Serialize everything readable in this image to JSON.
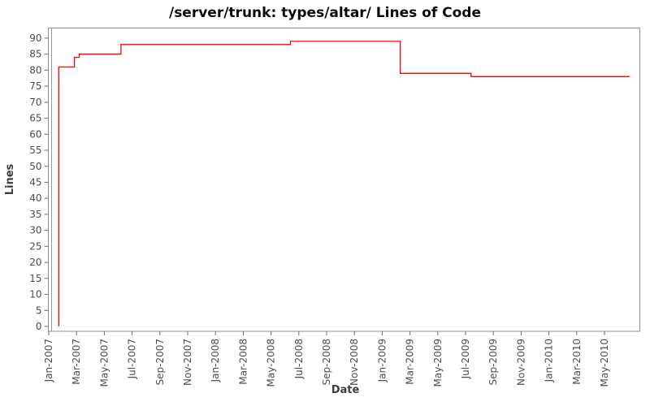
{
  "chart_data": {
    "type": "line",
    "subtype": "step",
    "title": "/server/trunk: types/altar/ Lines of Code",
    "xlabel": "Date",
    "ylabel": "Lines",
    "legend": "none",
    "grid": false,
    "background_color": "#ffffff",
    "line_color": "#ff0000",
    "border_color": "#8f8f8f",
    "tick_color": "#6e6e6e",
    "tick_label_color": "#4d4d4d",
    "ylim": [
      0,
      92
    ],
    "y_ticks": [
      0,
      5,
      10,
      15,
      20,
      25,
      30,
      35,
      40,
      45,
      50,
      55,
      60,
      65,
      70,
      75,
      80,
      85,
      90
    ],
    "x_tick_labels": [
      "Jan-2007",
      "Mar-2007",
      "May-2007",
      "Jul-2007",
      "Sep-2007",
      "Nov-2007",
      "Jan-2008",
      "Mar-2008",
      "May-2008",
      "Jul-2008",
      "Sep-2008",
      "Nov-2008",
      "Jan-2009",
      "Mar-2009",
      "May-2009",
      "Jul-2009",
      "Sep-2009",
      "Nov-2009",
      "Jan-2010",
      "Mar-2010",
      "May-2010"
    ],
    "x_unit": "months since Jan-2007, 2 months per labeled tick",
    "series": [
      {
        "name": "lines of code",
        "start": {
          "x_months": 0.72,
          "value": 0
        },
        "steps": [
          {
            "x_months": 0.72,
            "value": 81
          },
          {
            "x_months": 1.85,
            "value": 84
          },
          {
            "x_months": 2.2,
            "value": 85
          },
          {
            "x_months": 5.2,
            "value": 88
          },
          {
            "x_months": 17.4,
            "value": 89
          },
          {
            "x_months": 25.3,
            "value": 79
          },
          {
            "x_months": 30.4,
            "value": 78
          }
        ],
        "end_x_months": 41.8,
        "final_value": 78
      }
    ]
  }
}
